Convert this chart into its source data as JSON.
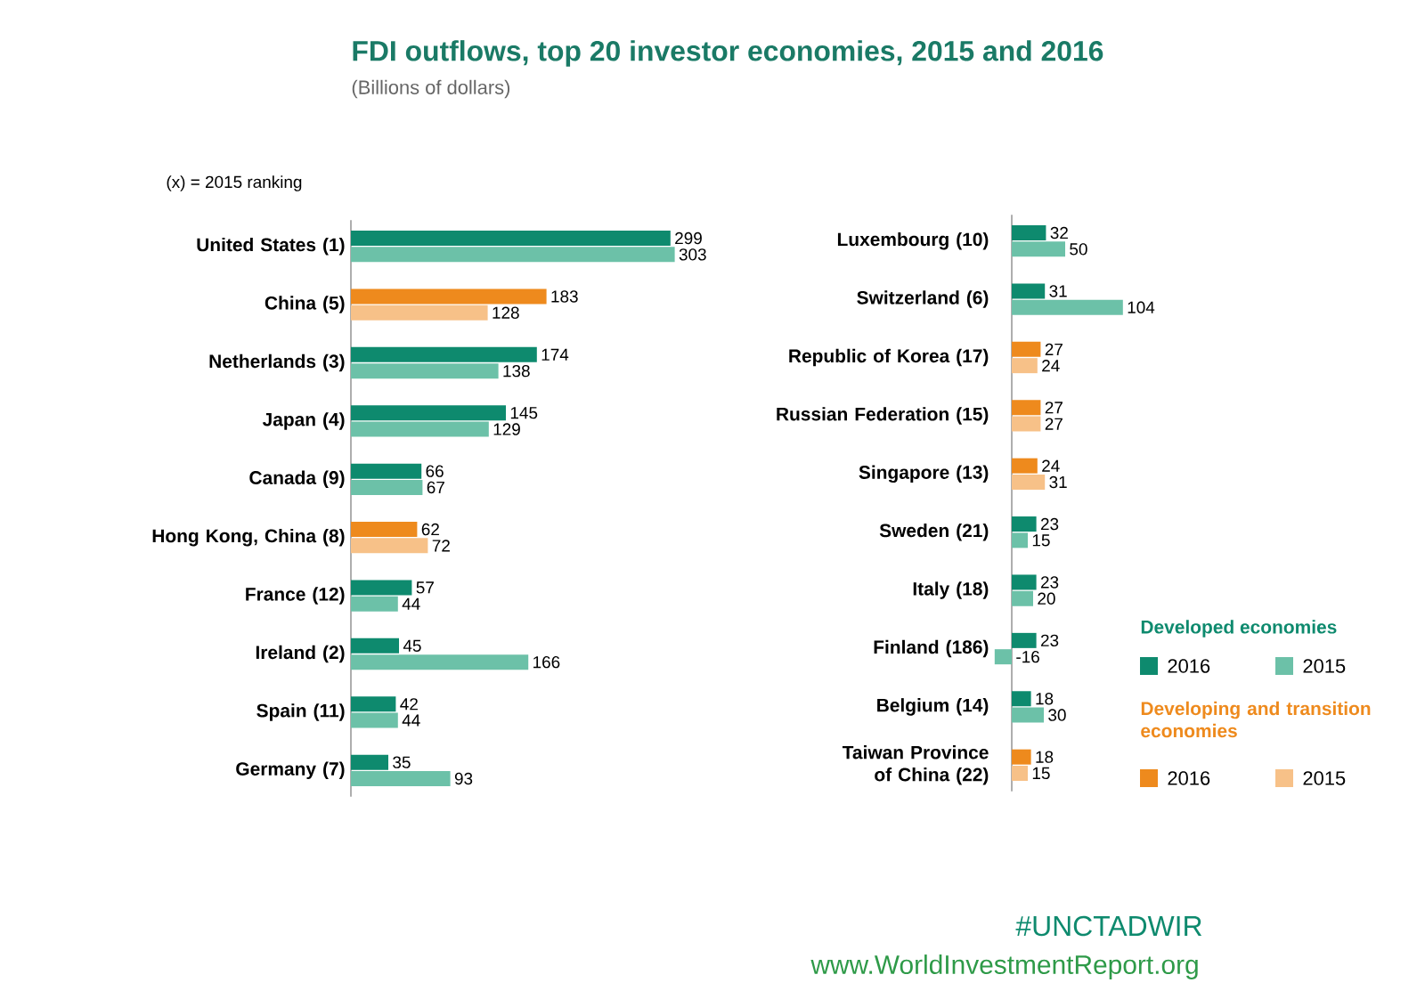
{
  "chart_data": [
    {
      "type": "bar",
      "orientation": "horizontal",
      "data_labels": true,
      "title": "FDI outflows, top 20 investor economies, 2015 and 2016",
      "subtitle": "(Billions of dollars)",
      "annotations": [
        "(x) = 2015 ranking"
      ],
      "categories": [
        "United States (1)",
        "China (5)",
        "Netherlands (3)",
        "Japan (4)",
        "Canada (9)",
        "Hong Kong, China (8)",
        "France (12)",
        "Ireland (2)",
        "Spain (11)",
        "Germany (7)"
      ],
      "series": [
        {
          "color": "#0e8a6e",
          "values": [
            299,
            null,
            174,
            145,
            66,
            null,
            57,
            45,
            42,
            35
          ]
        },
        {
          "color": "#6cc1a8",
          "values": [
            303,
            null,
            138,
            129,
            67,
            null,
            44,
            166,
            44,
            93
          ]
        },
        {
          "color": "#ee8a1d",
          "values": [
            null,
            183,
            null,
            null,
            null,
            62,
            null,
            null,
            null,
            null
          ]
        },
        {
          "color": "#f7c188",
          "values": [
            null,
            128,
            null,
            null,
            null,
            72,
            null,
            null,
            null,
            null
          ]
        }
      ]
    },
    {
      "type": "bar",
      "orientation": "horizontal",
      "data_labels": true,
      "legend": "bottom right",
      "annotations": [
        "Developed economies",
        "Developing and transition economies",
        "#UNCTADWIR",
        "www.WorldInvestmentReport.org"
      ],
      "categories": [
        "Luxembourg (10)",
        "Switzerland (6)",
        "Republic of Korea (17)",
        "Russian Federation (15)",
        "Singapore (13)",
        "Sweden (21)",
        "Italy (18)",
        "Finland (186)",
        "Belgium (14)",
        "Taiwan Province of China (22)"
      ],
      "series": [
        {
          "name": "2016",
          "color": "#0e8a6e",
          "values": [
            32,
            31,
            null,
            null,
            null,
            23,
            23,
            23,
            18,
            null
          ]
        },
        {
          "name": "2015",
          "color": "#6cc1a8",
          "values": [
            50,
            104,
            null,
            null,
            null,
            15,
            20,
            -16,
            30,
            null
          ]
        },
        {
          "name": "2016",
          "color": "#ee8a1d",
          "values": [
            null,
            null,
            27,
            27,
            24,
            null,
            null,
            null,
            null,
            18
          ]
        },
        {
          "name": "2015",
          "color": "#f7c188",
          "values": [
            null,
            null,
            24,
            27,
            31,
            null,
            null,
            null,
            null,
            15
          ]
        }
      ]
    }
  ]
}
